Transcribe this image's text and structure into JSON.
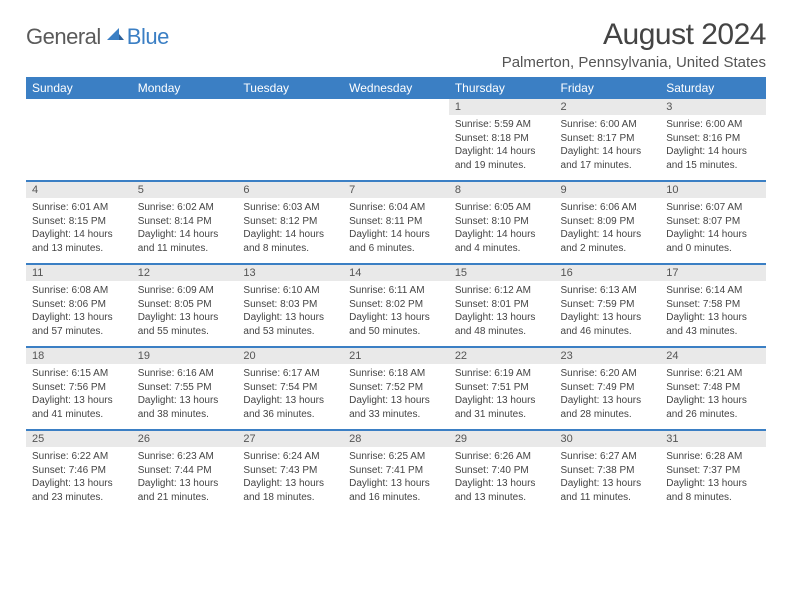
{
  "branding": {
    "text_general": "General",
    "text_blue": "Blue",
    "general_color": "#5a5a5a",
    "blue_color": "#3b7fc4"
  },
  "header": {
    "month_title": "August 2024",
    "location": "Palmerton, Pennsylvania, United States"
  },
  "style": {
    "accent": "#3b7fc4",
    "daynum_bg": "#e9e9e9",
    "text_color": "#444444",
    "body_bg": "#ffffff",
    "header_font_size": 30,
    "location_font_size": 15,
    "weekday_font_size": 12,
    "daynum_font_size": 11,
    "detail_font_size": 10
  },
  "calendar": {
    "weekdays": [
      "Sunday",
      "Monday",
      "Tuesday",
      "Wednesday",
      "Thursday",
      "Friday",
      "Saturday"
    ],
    "weeks": [
      [
        null,
        null,
        null,
        null,
        {
          "n": "1",
          "sunrise": "5:59 AM",
          "sunset": "8:18 PM",
          "daylight": "14 hours and 19 minutes."
        },
        {
          "n": "2",
          "sunrise": "6:00 AM",
          "sunset": "8:17 PM",
          "daylight": "14 hours and 17 minutes."
        },
        {
          "n": "3",
          "sunrise": "6:00 AM",
          "sunset": "8:16 PM",
          "daylight": "14 hours and 15 minutes."
        }
      ],
      [
        {
          "n": "4",
          "sunrise": "6:01 AM",
          "sunset": "8:15 PM",
          "daylight": "14 hours and 13 minutes."
        },
        {
          "n": "5",
          "sunrise": "6:02 AM",
          "sunset": "8:14 PM",
          "daylight": "14 hours and 11 minutes."
        },
        {
          "n": "6",
          "sunrise": "6:03 AM",
          "sunset": "8:12 PM",
          "daylight": "14 hours and 8 minutes."
        },
        {
          "n": "7",
          "sunrise": "6:04 AM",
          "sunset": "8:11 PM",
          "daylight": "14 hours and 6 minutes."
        },
        {
          "n": "8",
          "sunrise": "6:05 AM",
          "sunset": "8:10 PM",
          "daylight": "14 hours and 4 minutes."
        },
        {
          "n": "9",
          "sunrise": "6:06 AM",
          "sunset": "8:09 PM",
          "daylight": "14 hours and 2 minutes."
        },
        {
          "n": "10",
          "sunrise": "6:07 AM",
          "sunset": "8:07 PM",
          "daylight": "14 hours and 0 minutes."
        }
      ],
      [
        {
          "n": "11",
          "sunrise": "6:08 AM",
          "sunset": "8:06 PM",
          "daylight": "13 hours and 57 minutes."
        },
        {
          "n": "12",
          "sunrise": "6:09 AM",
          "sunset": "8:05 PM",
          "daylight": "13 hours and 55 minutes."
        },
        {
          "n": "13",
          "sunrise": "6:10 AM",
          "sunset": "8:03 PM",
          "daylight": "13 hours and 53 minutes."
        },
        {
          "n": "14",
          "sunrise": "6:11 AM",
          "sunset": "8:02 PM",
          "daylight": "13 hours and 50 minutes."
        },
        {
          "n": "15",
          "sunrise": "6:12 AM",
          "sunset": "8:01 PM",
          "daylight": "13 hours and 48 minutes."
        },
        {
          "n": "16",
          "sunrise": "6:13 AM",
          "sunset": "7:59 PM",
          "daylight": "13 hours and 46 minutes."
        },
        {
          "n": "17",
          "sunrise": "6:14 AM",
          "sunset": "7:58 PM",
          "daylight": "13 hours and 43 minutes."
        }
      ],
      [
        {
          "n": "18",
          "sunrise": "6:15 AM",
          "sunset": "7:56 PM",
          "daylight": "13 hours and 41 minutes."
        },
        {
          "n": "19",
          "sunrise": "6:16 AM",
          "sunset": "7:55 PM",
          "daylight": "13 hours and 38 minutes."
        },
        {
          "n": "20",
          "sunrise": "6:17 AM",
          "sunset": "7:54 PM",
          "daylight": "13 hours and 36 minutes."
        },
        {
          "n": "21",
          "sunrise": "6:18 AM",
          "sunset": "7:52 PM",
          "daylight": "13 hours and 33 minutes."
        },
        {
          "n": "22",
          "sunrise": "6:19 AM",
          "sunset": "7:51 PM",
          "daylight": "13 hours and 31 minutes."
        },
        {
          "n": "23",
          "sunrise": "6:20 AM",
          "sunset": "7:49 PM",
          "daylight": "13 hours and 28 minutes."
        },
        {
          "n": "24",
          "sunrise": "6:21 AM",
          "sunset": "7:48 PM",
          "daylight": "13 hours and 26 minutes."
        }
      ],
      [
        {
          "n": "25",
          "sunrise": "6:22 AM",
          "sunset": "7:46 PM",
          "daylight": "13 hours and 23 minutes."
        },
        {
          "n": "26",
          "sunrise": "6:23 AM",
          "sunset": "7:44 PM",
          "daylight": "13 hours and 21 minutes."
        },
        {
          "n": "27",
          "sunrise": "6:24 AM",
          "sunset": "7:43 PM",
          "daylight": "13 hours and 18 minutes."
        },
        {
          "n": "28",
          "sunrise": "6:25 AM",
          "sunset": "7:41 PM",
          "daylight": "13 hours and 16 minutes."
        },
        {
          "n": "29",
          "sunrise": "6:26 AM",
          "sunset": "7:40 PM",
          "daylight": "13 hours and 13 minutes."
        },
        {
          "n": "30",
          "sunrise": "6:27 AM",
          "sunset": "7:38 PM",
          "daylight": "13 hours and 11 minutes."
        },
        {
          "n": "31",
          "sunrise": "6:28 AM",
          "sunset": "7:37 PM",
          "daylight": "13 hours and 8 minutes."
        }
      ]
    ],
    "labels": {
      "sunrise": "Sunrise: ",
      "sunset": "Sunset: ",
      "daylight": "Daylight: "
    }
  }
}
